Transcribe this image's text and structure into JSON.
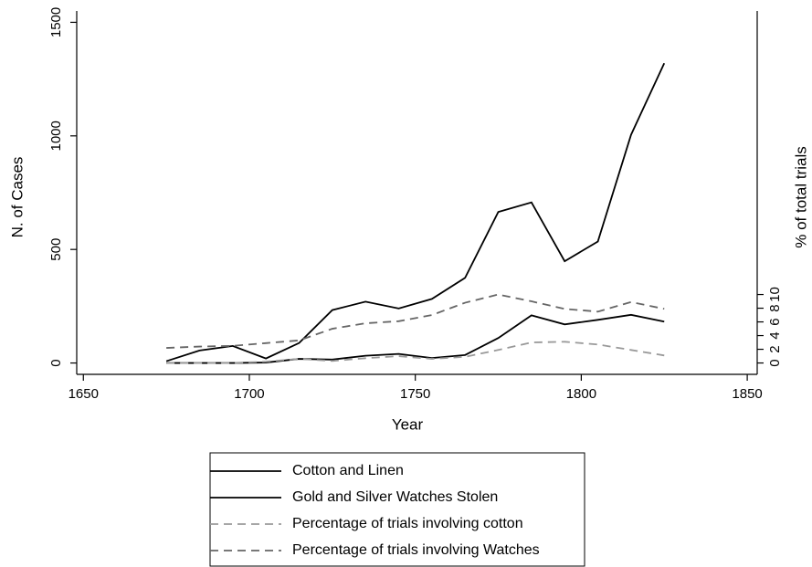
{
  "chart_data": {
    "type": "line",
    "x": [
      1675,
      1685,
      1695,
      1705,
      1715,
      1725,
      1735,
      1745,
      1755,
      1765,
      1775,
      1785,
      1795,
      1805,
      1815,
      1825
    ],
    "xlabel": "Year",
    "ylabel": "N. of Cases",
    "y2label": "% of total trials",
    "xlim": [
      1648,
      1853
    ],
    "xticks": [
      1650,
      1700,
      1750,
      1800,
      1850
    ],
    "ylim": [
      -50,
      1550
    ],
    "yticks": [
      0,
      500,
      1000,
      1500
    ],
    "y2lim": [
      -1.66,
      51.41
    ],
    "y2ticks": [
      0,
      2,
      4,
      6,
      8,
      10
    ],
    "legend": "bottom",
    "series": [
      {
        "name": "Cotton and Linen",
        "color": "#000000",
        "dash": "solid",
        "values": [
          8,
          55,
          75,
          20,
          88,
          233,
          270,
          240,
          282,
          375,
          665,
          707,
          448,
          535,
          1005,
          1320
        ]
      },
      {
        "name": "Gold and Silver Watches Stolen",
        "color": "#000000",
        "dash": "solid",
        "values": [
          0,
          0,
          0,
          2,
          18,
          15,
          32,
          40,
          22,
          35,
          110,
          210,
          170,
          190,
          212,
          182
        ]
      },
      {
        "name": "Percentage of trials involving cotton",
        "color": "#999999",
        "dash": "dashed",
        "axis": "y2",
        "values": [
          0,
          0,
          0,
          0.2,
          0.6,
          0.3,
          0.7,
          1.0,
          0.6,
          0.9,
          1.9,
          3.0,
          3.1,
          2.7,
          1.9,
          1.1
        ]
      },
      {
        "name": "Percentage of trials involving Watches",
        "color": "#666666",
        "dash": "dashed",
        "axis": "y2",
        "values": [
          2.2,
          2.4,
          2.5,
          2.9,
          3.3,
          5.0,
          5.8,
          6.1,
          7.0,
          8.8,
          10.0,
          9.0,
          7.9,
          7.5,
          8.9,
          7.9
        ]
      }
    ]
  }
}
